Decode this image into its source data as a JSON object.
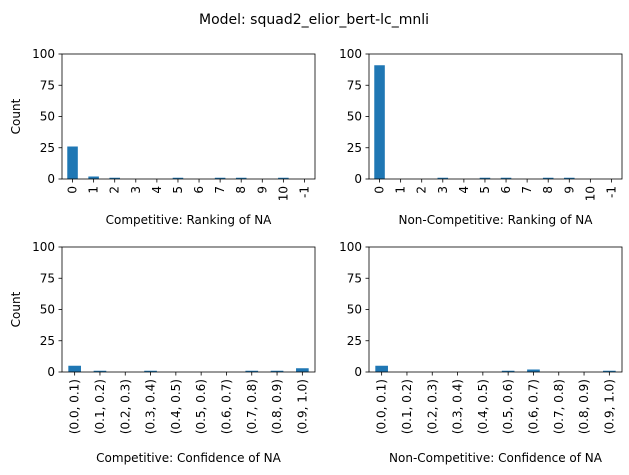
{
  "suptitle": "Model: squad2_elior_bert-lc_mnli",
  "colors": {
    "bar": "#1f77b4",
    "axis": "#000000",
    "background": "#ffffff"
  },
  "chart_data": [
    {
      "type": "bar",
      "xlabel": "Competitive: Ranking of NA",
      "ylabel": "Count",
      "ylim": [
        0,
        100
      ],
      "yticks": [
        "0",
        "25",
        "50",
        "75",
        "100"
      ],
      "categories": [
        "0",
        "1",
        "2",
        "3",
        "4",
        "5",
        "6",
        "7",
        "8",
        "9",
        "10",
        "-1"
      ],
      "values": [
        26,
        2,
        1,
        0,
        0,
        1,
        0,
        1,
        1,
        0,
        1,
        0
      ]
    },
    {
      "type": "bar",
      "xlabel": "Non-Competitive: Ranking of NA",
      "ylabel": "",
      "ylim": [
        0,
        100
      ],
      "yticks": [
        "0",
        "25",
        "50",
        "75",
        "100"
      ],
      "categories": [
        "0",
        "1",
        "2",
        "3",
        "4",
        "5",
        "6",
        "7",
        "8",
        "9",
        "10",
        "-1"
      ],
      "values": [
        91,
        0,
        0,
        1,
        0,
        1,
        1,
        0,
        1,
        1,
        0,
        0
      ]
    },
    {
      "type": "bar",
      "xlabel": "Competitive: Confidence of NA",
      "ylabel": "Count",
      "ylim": [
        0,
        100
      ],
      "yticks": [
        "0",
        "25",
        "50",
        "75",
        "100"
      ],
      "categories": [
        "(0.0, 0.1)",
        "(0.1, 0.2)",
        "(0.2, 0.3)",
        "(0.3, 0.4)",
        "(0.4, 0.5)",
        "(0.5, 0.6)",
        "(0.6, 0.7)",
        "(0.7, 0.8)",
        "(0.8, 0.9)",
        "(0.9, 1.0)"
      ],
      "values": [
        5,
        1,
        0,
        1,
        0,
        0,
        0,
        1,
        1,
        3
      ]
    },
    {
      "type": "bar",
      "xlabel": "Non-Competitive: Confidence of NA",
      "ylabel": "",
      "ylim": [
        0,
        100
      ],
      "yticks": [
        "0",
        "25",
        "50",
        "75",
        "100"
      ],
      "categories": [
        "(0.0, 0.1)",
        "(0.1, 0.2)",
        "(0.2, 0.3)",
        "(0.3, 0.4)",
        "(0.4, 0.5)",
        "(0.5, 0.6)",
        "(0.6, 0.7)",
        "(0.7, 0.8)",
        "(0.8, 0.9)",
        "(0.9, 1.0)"
      ],
      "values": [
        5,
        0,
        0,
        0,
        0,
        1,
        2,
        0,
        0,
        1
      ]
    }
  ]
}
